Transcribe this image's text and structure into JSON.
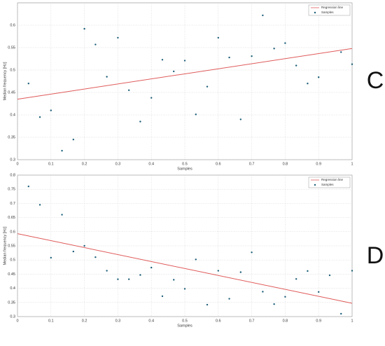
{
  "chart_data": [
    {
      "type": "scatter",
      "panel_label": "C",
      "xlabel": "Samples",
      "ylabel": "Median frequency [Hz]",
      "xlim": [
        0,
        1
      ],
      "ylim": [
        0.3,
        0.65
      ],
      "xticks": [
        0,
        0.1,
        0.2,
        0.3,
        0.4,
        0.5,
        0.6,
        0.7,
        0.8,
        0.9,
        1
      ],
      "yticks": [
        0.3,
        0.35,
        0.4,
        0.45,
        0.5,
        0.55,
        0.6
      ],
      "grid": true,
      "legend": "upper right",
      "series": [
        {
          "name": "Regression line",
          "kind": "line",
          "color": "#e05a5a",
          "x": [
            0,
            1
          ],
          "values": [
            0.435,
            0.548
          ]
        },
        {
          "name": "Samples",
          "kind": "points",
          "color": "#1b5e78",
          "x": [
            0.033,
            0.067,
            0.1,
            0.133,
            0.167,
            0.2,
            0.233,
            0.267,
            0.3,
            0.333,
            0.367,
            0.4,
            0.433,
            0.467,
            0.5,
            0.533,
            0.567,
            0.6,
            0.633,
            0.667,
            0.7,
            0.733,
            0.767,
            0.8,
            0.833,
            0.867,
            0.9,
            0.967,
            1
          ],
          "values": [
            0.47,
            0.395,
            0.41,
            0.32,
            0.345,
            0.592,
            0.557,
            0.485,
            0.572,
            0.455,
            0.385,
            0.438,
            0.523,
            0.497,
            0.521,
            0.401,
            0.463,
            0.572,
            0.528,
            0.39,
            0.531,
            0.622,
            0.548,
            0.56,
            0.51,
            0.47,
            0.484,
            0.54,
            0.513
          ]
        }
      ]
    },
    {
      "type": "scatter",
      "panel_label": "D",
      "xlabel": "Samples",
      "ylabel": "Median frequency [Hz]",
      "xlim": [
        0,
        1
      ],
      "ylim": [
        0.3,
        0.8
      ],
      "xticks": [
        0,
        0.1,
        0.2,
        0.3,
        0.4,
        0.5,
        0.6,
        0.7,
        0.8,
        0.9,
        1
      ],
      "yticks": [
        0.3,
        0.35,
        0.4,
        0.45,
        0.5,
        0.55,
        0.6,
        0.65,
        0.7,
        0.75,
        0.8
      ],
      "grid": true,
      "legend": "upper right",
      "series": [
        {
          "name": "Regression line",
          "kind": "line",
          "color": "#e05a5a",
          "x": [
            0,
            1
          ],
          "values": [
            0.593,
            0.347
          ]
        },
        {
          "name": "Samples",
          "kind": "points",
          "color": "#1b5e78",
          "x": [
            0.033,
            0.067,
            0.1,
            0.133,
            0.167,
            0.2,
            0.233,
            0.267,
            0.3,
            0.333,
            0.367,
            0.4,
            0.433,
            0.467,
            0.5,
            0.533,
            0.567,
            0.6,
            0.633,
            0.667,
            0.7,
            0.733,
            0.767,
            0.8,
            0.833,
            0.867,
            0.9,
            0.933,
            0.967,
            1
          ],
          "values": [
            0.76,
            0.695,
            0.508,
            0.66,
            0.53,
            0.55,
            0.51,
            0.462,
            0.432,
            0.432,
            0.447,
            0.473,
            0.372,
            0.43,
            0.398,
            0.502,
            0.342,
            0.462,
            0.363,
            0.457,
            0.527,
            0.388,
            0.344,
            0.37,
            0.433,
            0.461,
            0.387,
            0.446,
            0.31,
            0.462
          ]
        }
      ]
    }
  ]
}
